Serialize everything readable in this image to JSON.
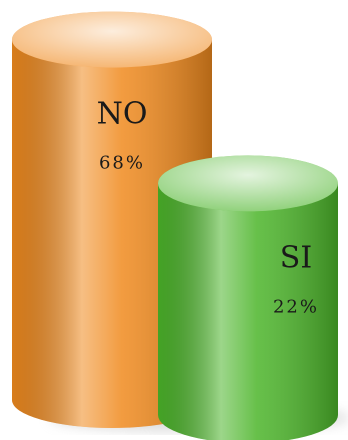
{
  "chart_data": {
    "type": "bar",
    "categories": [
      "NO",
      "SI"
    ],
    "values": [
      68,
      22
    ],
    "value_labels": [
      "68%",
      "22%"
    ],
    "colors": [
      "#f08a1e",
      "#4cb52a"
    ]
  }
}
